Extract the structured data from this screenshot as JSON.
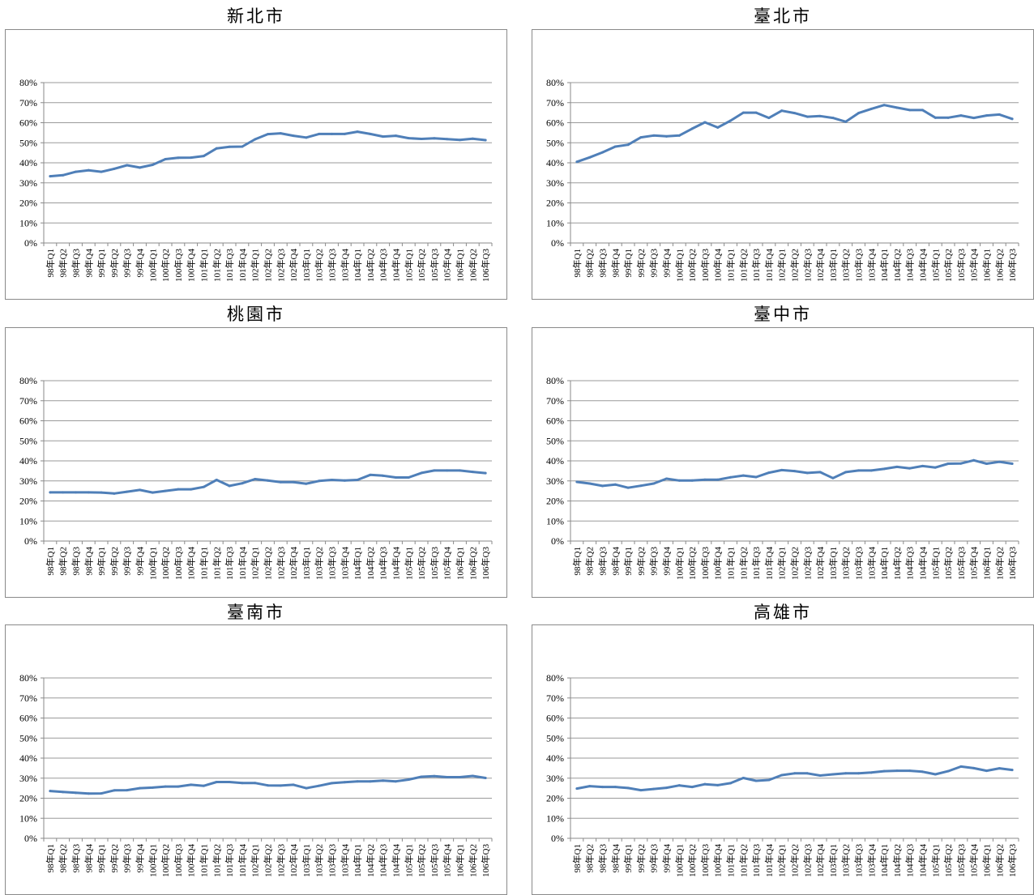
{
  "chart_data": [
    {
      "type": "line",
      "title": "新北市",
      "ylim": [
        0,
        0.8
      ],
      "yticks": [
        "0%",
        "10%",
        "20%",
        "30%",
        "40%",
        "50%",
        "60%",
        "70%",
        "80%"
      ],
      "categories": [
        "98年Q1",
        "98年Q2",
        "98年Q3",
        "98年Q4",
        "99年Q1",
        "99年Q2",
        "99年Q3",
        "99年Q4",
        "100年Q1",
        "100年Q2",
        "100年Q3",
        "100年Q4",
        "101年Q1",
        "101年Q2",
        "101年Q3",
        "101年Q4",
        "102年Q1",
        "102年Q2",
        "102年Q3",
        "102年Q4",
        "103年Q1",
        "103年Q2",
        "103年Q3",
        "103年Q4",
        "104年Q1",
        "104年Q2",
        "104年Q3",
        "104年Q4",
        "105年Q1",
        "105年Q2",
        "105年Q3",
        "105年Q4",
        "106年Q1",
        "106年Q2",
        "106年Q3"
      ],
      "values": [
        0.333,
        0.338,
        0.355,
        0.363,
        0.355,
        0.37,
        0.388,
        0.376,
        0.39,
        0.418,
        0.425,
        0.426,
        0.434,
        0.472,
        0.48,
        0.481,
        0.517,
        0.543,
        0.547,
        0.535,
        0.526,
        0.544,
        0.544,
        0.544,
        0.555,
        0.544,
        0.531,
        0.535,
        0.523,
        0.519,
        0.522,
        0.518,
        0.514,
        0.52,
        0.513
      ],
      "grid": true,
      "color": "#4f7fb8"
    },
    {
      "type": "line",
      "title": "臺北市",
      "ylim": [
        0,
        0.8
      ],
      "yticks": [
        "0%",
        "10%",
        "20%",
        "30%",
        "40%",
        "50%",
        "60%",
        "70%",
        "80%"
      ],
      "categories": [
        "98年Q1",
        "98年Q2",
        "98年Q3",
        "98年Q4",
        "99年Q1",
        "99年Q2",
        "99年Q3",
        "99年Q4",
        "100年Q1",
        "100年Q2",
        "100年Q3",
        "100年Q4",
        "101年Q1",
        "101年Q2",
        "101年Q3",
        "101年Q4",
        "102年Q1",
        "102年Q2",
        "102年Q3",
        "102年Q4",
        "103年Q1",
        "103年Q2",
        "103年Q3",
        "103年Q4",
        "104年Q1",
        "104年Q2",
        "104年Q3",
        "104年Q4",
        "105年Q1",
        "105年Q2",
        "105年Q3",
        "105年Q4",
        "106年Q1",
        "106年Q2",
        "106年Q3"
      ],
      "values": [
        0.405,
        0.427,
        0.452,
        0.481,
        0.49,
        0.527,
        0.536,
        0.532,
        0.536,
        0.57,
        0.602,
        0.576,
        0.61,
        0.65,
        0.65,
        0.624,
        0.66,
        0.648,
        0.63,
        0.633,
        0.624,
        0.605,
        0.648,
        0.669,
        0.688,
        0.675,
        0.663,
        0.663,
        0.625,
        0.625,
        0.636,
        0.624,
        0.636,
        0.641,
        0.619
      ],
      "grid": true,
      "color": "#4f7fb8"
    },
    {
      "type": "line",
      "title": "桃園市",
      "ylim": [
        0,
        0.8
      ],
      "yticks": [
        "0%",
        "10%",
        "20%",
        "30%",
        "40%",
        "50%",
        "60%",
        "70%",
        "80%"
      ],
      "categories": [
        "98年Q1",
        "98年Q2",
        "98年Q3",
        "98年Q4",
        "99年Q1",
        "99年Q2",
        "99年Q3",
        "99年Q4",
        "100年Q1",
        "100年Q2",
        "100年Q3",
        "100年Q4",
        "101年Q1",
        "101年Q2",
        "101年Q3",
        "101年Q4",
        "102年Q1",
        "102年Q2",
        "102年Q3",
        "102年Q4",
        "103年Q1",
        "103年Q2",
        "103年Q3",
        "103年Q4",
        "104年Q1",
        "104年Q2",
        "104年Q3",
        "104年Q4",
        "105年Q1",
        "105年Q2",
        "105年Q3",
        "105年Q4",
        "106年Q1",
        "106年Q2",
        "106年Q3"
      ],
      "values": [
        0.243,
        0.243,
        0.243,
        0.243,
        0.242,
        0.237,
        0.246,
        0.255,
        0.242,
        0.25,
        0.258,
        0.258,
        0.27,
        0.305,
        0.275,
        0.288,
        0.309,
        0.302,
        0.294,
        0.294,
        0.286,
        0.3,
        0.305,
        0.302,
        0.305,
        0.33,
        0.326,
        0.317,
        0.317,
        0.34,
        0.352,
        0.352,
        0.352,
        0.345,
        0.339
      ],
      "grid": true,
      "color": "#4f7fb8"
    },
    {
      "type": "line",
      "title": "臺中市",
      "ylim": [
        0,
        0.8
      ],
      "yticks": [
        "0%",
        "10%",
        "20%",
        "30%",
        "40%",
        "50%",
        "60%",
        "70%",
        "80%"
      ],
      "categories": [
        "98年Q1",
        "98年Q2",
        "98年Q3",
        "98年Q4",
        "99年Q1",
        "99年Q2",
        "99年Q3",
        "99年Q4",
        "100年Q1",
        "100年Q2",
        "100年Q3",
        "100年Q4",
        "101年Q1",
        "101年Q2",
        "101年Q3",
        "101年Q4",
        "102年Q1",
        "102年Q2",
        "102年Q3",
        "102年Q4",
        "103年Q1",
        "103年Q2",
        "103年Q3",
        "103年Q4",
        "104年Q1",
        "104年Q2",
        "104年Q3",
        "104年Q4",
        "105年Q1",
        "105年Q2",
        "105年Q3",
        "105年Q4",
        "106年Q1",
        "106年Q2",
        "106年Q3"
      ],
      "values": [
        0.295,
        0.287,
        0.275,
        0.282,
        0.266,
        0.276,
        0.287,
        0.311,
        0.302,
        0.302,
        0.306,
        0.306,
        0.318,
        0.327,
        0.319,
        0.341,
        0.354,
        0.349,
        0.34,
        0.344,
        0.314,
        0.344,
        0.352,
        0.352,
        0.36,
        0.37,
        0.363,
        0.374,
        0.367,
        0.386,
        0.387,
        0.403,
        0.386,
        0.395,
        0.386
      ],
      "grid": true,
      "color": "#4f7fb8"
    },
    {
      "type": "line",
      "title": "臺南市",
      "ylim": [
        0,
        0.8
      ],
      "yticks": [
        "0%",
        "10%",
        "20%",
        "30%",
        "40%",
        "50%",
        "60%",
        "70%",
        "80%"
      ],
      "categories": [
        "98年Q1",
        "98年Q2",
        "98年Q3",
        "98年Q4",
        "99年Q1",
        "99年Q2",
        "99年Q3",
        "99年Q4",
        "100年Q1",
        "100年Q2",
        "100年Q3",
        "100年Q4",
        "101年Q1",
        "101年Q2",
        "101年Q3",
        "101年Q4",
        "102年Q1",
        "102年Q2",
        "102年Q3",
        "102年Q4",
        "103年Q1",
        "103年Q2",
        "103年Q3",
        "103年Q4",
        "104年Q1",
        "104年Q2",
        "104年Q3",
        "104年Q4",
        "105年Q1",
        "105年Q2",
        "105年Q3",
        "105年Q4",
        "106年Q1",
        "106年Q2",
        "106年Q3"
      ],
      "values": [
        0.236,
        0.231,
        0.227,
        0.223,
        0.224,
        0.239,
        0.24,
        0.25,
        0.253,
        0.258,
        0.258,
        0.267,
        0.262,
        0.281,
        0.281,
        0.276,
        0.276,
        0.264,
        0.263,
        0.267,
        0.25,
        0.262,
        0.275,
        0.28,
        0.284,
        0.284,
        0.288,
        0.284,
        0.293,
        0.307,
        0.31,
        0.305,
        0.305,
        0.311,
        0.301
      ],
      "grid": true,
      "color": "#4f7fb8"
    },
    {
      "type": "line",
      "title": "高雄市",
      "ylim": [
        0,
        0.8
      ],
      "yticks": [
        "0%",
        "10%",
        "20%",
        "30%",
        "40%",
        "50%",
        "60%",
        "70%",
        "80%"
      ],
      "categories": [
        "98年Q1",
        "98年Q2",
        "98年Q3",
        "98年Q4",
        "99年Q1",
        "99年Q2",
        "99年Q3",
        "99年Q4",
        "100年Q1",
        "100年Q2",
        "100年Q3",
        "100年Q4",
        "101年Q1",
        "101年Q2",
        "101年Q3",
        "101年Q4",
        "102年Q1",
        "102年Q2",
        "102年Q3",
        "102年Q4",
        "103年Q1",
        "103年Q2",
        "103年Q3",
        "103年Q4",
        "104年Q1",
        "104年Q2",
        "104年Q3",
        "104年Q4",
        "105年Q1",
        "105年Q2",
        "105年Q3",
        "105年Q4",
        "106年Q1",
        "106年Q2",
        "106年Q3"
      ],
      "values": [
        0.248,
        0.26,
        0.256,
        0.256,
        0.251,
        0.24,
        0.246,
        0.252,
        0.264,
        0.256,
        0.27,
        0.265,
        0.275,
        0.301,
        0.287,
        0.291,
        0.315,
        0.324,
        0.324,
        0.313,
        0.319,
        0.324,
        0.324,
        0.328,
        0.335,
        0.337,
        0.337,
        0.332,
        0.319,
        0.335,
        0.358,
        0.35,
        0.337,
        0.349,
        0.341
      ],
      "grid": true,
      "color": "#4f7fb8"
    }
  ]
}
